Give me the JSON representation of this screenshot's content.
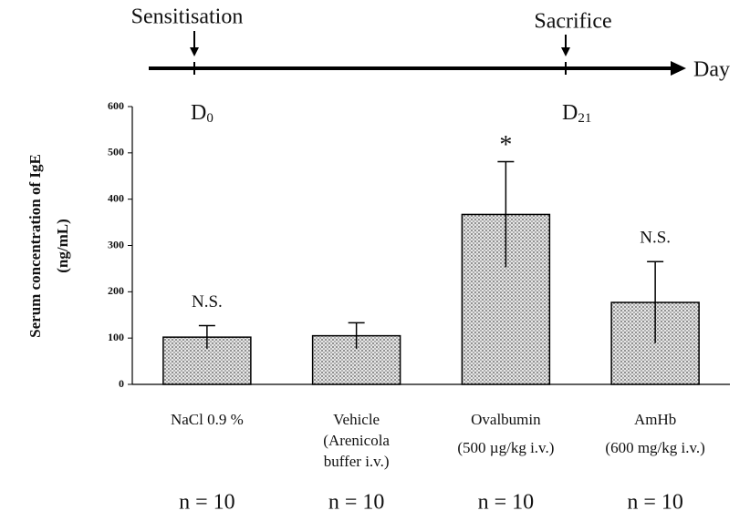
{
  "chart_data": {
    "type": "bar",
    "timeline": {
      "events": [
        {
          "label": "Sensitisation",
          "day": {
            "label": "D",
            "sub": "0"
          }
        },
        {
          "label": "Sacrifice",
          "day": {
            "label": "D",
            "sub": "21"
          }
        }
      ],
      "axis_label": "Day"
    },
    "y_label": [
      "Serum concentration of IgE",
      "(ng/mL)"
    ],
    "categories": [
      [
        "NaCl 0.9 %"
      ],
      [
        "Vehicle",
        "(Arenicola",
        "buffer i.v.)"
      ],
      [
        "Ovalbumin",
        "(500 µg/kg i.v.)"
      ],
      [
        "AmHb",
        "(600 mg/kg i.v.)"
      ]
    ],
    "values": [
      102,
      105,
      367,
      177
    ],
    "errors": [
      25,
      28,
      114,
      88
    ],
    "bar_annotations": [
      "N.S.",
      null,
      "*",
      "N.S."
    ],
    "n_labels": [
      "n = 10",
      "n = 10",
      "n = 10",
      "n = 10"
    ],
    "color": "#d4d4d4",
    "ylim": [
      0,
      600
    ],
    "yticks": [
      0,
      100,
      200,
      300,
      400,
      500,
      600
    ]
  }
}
